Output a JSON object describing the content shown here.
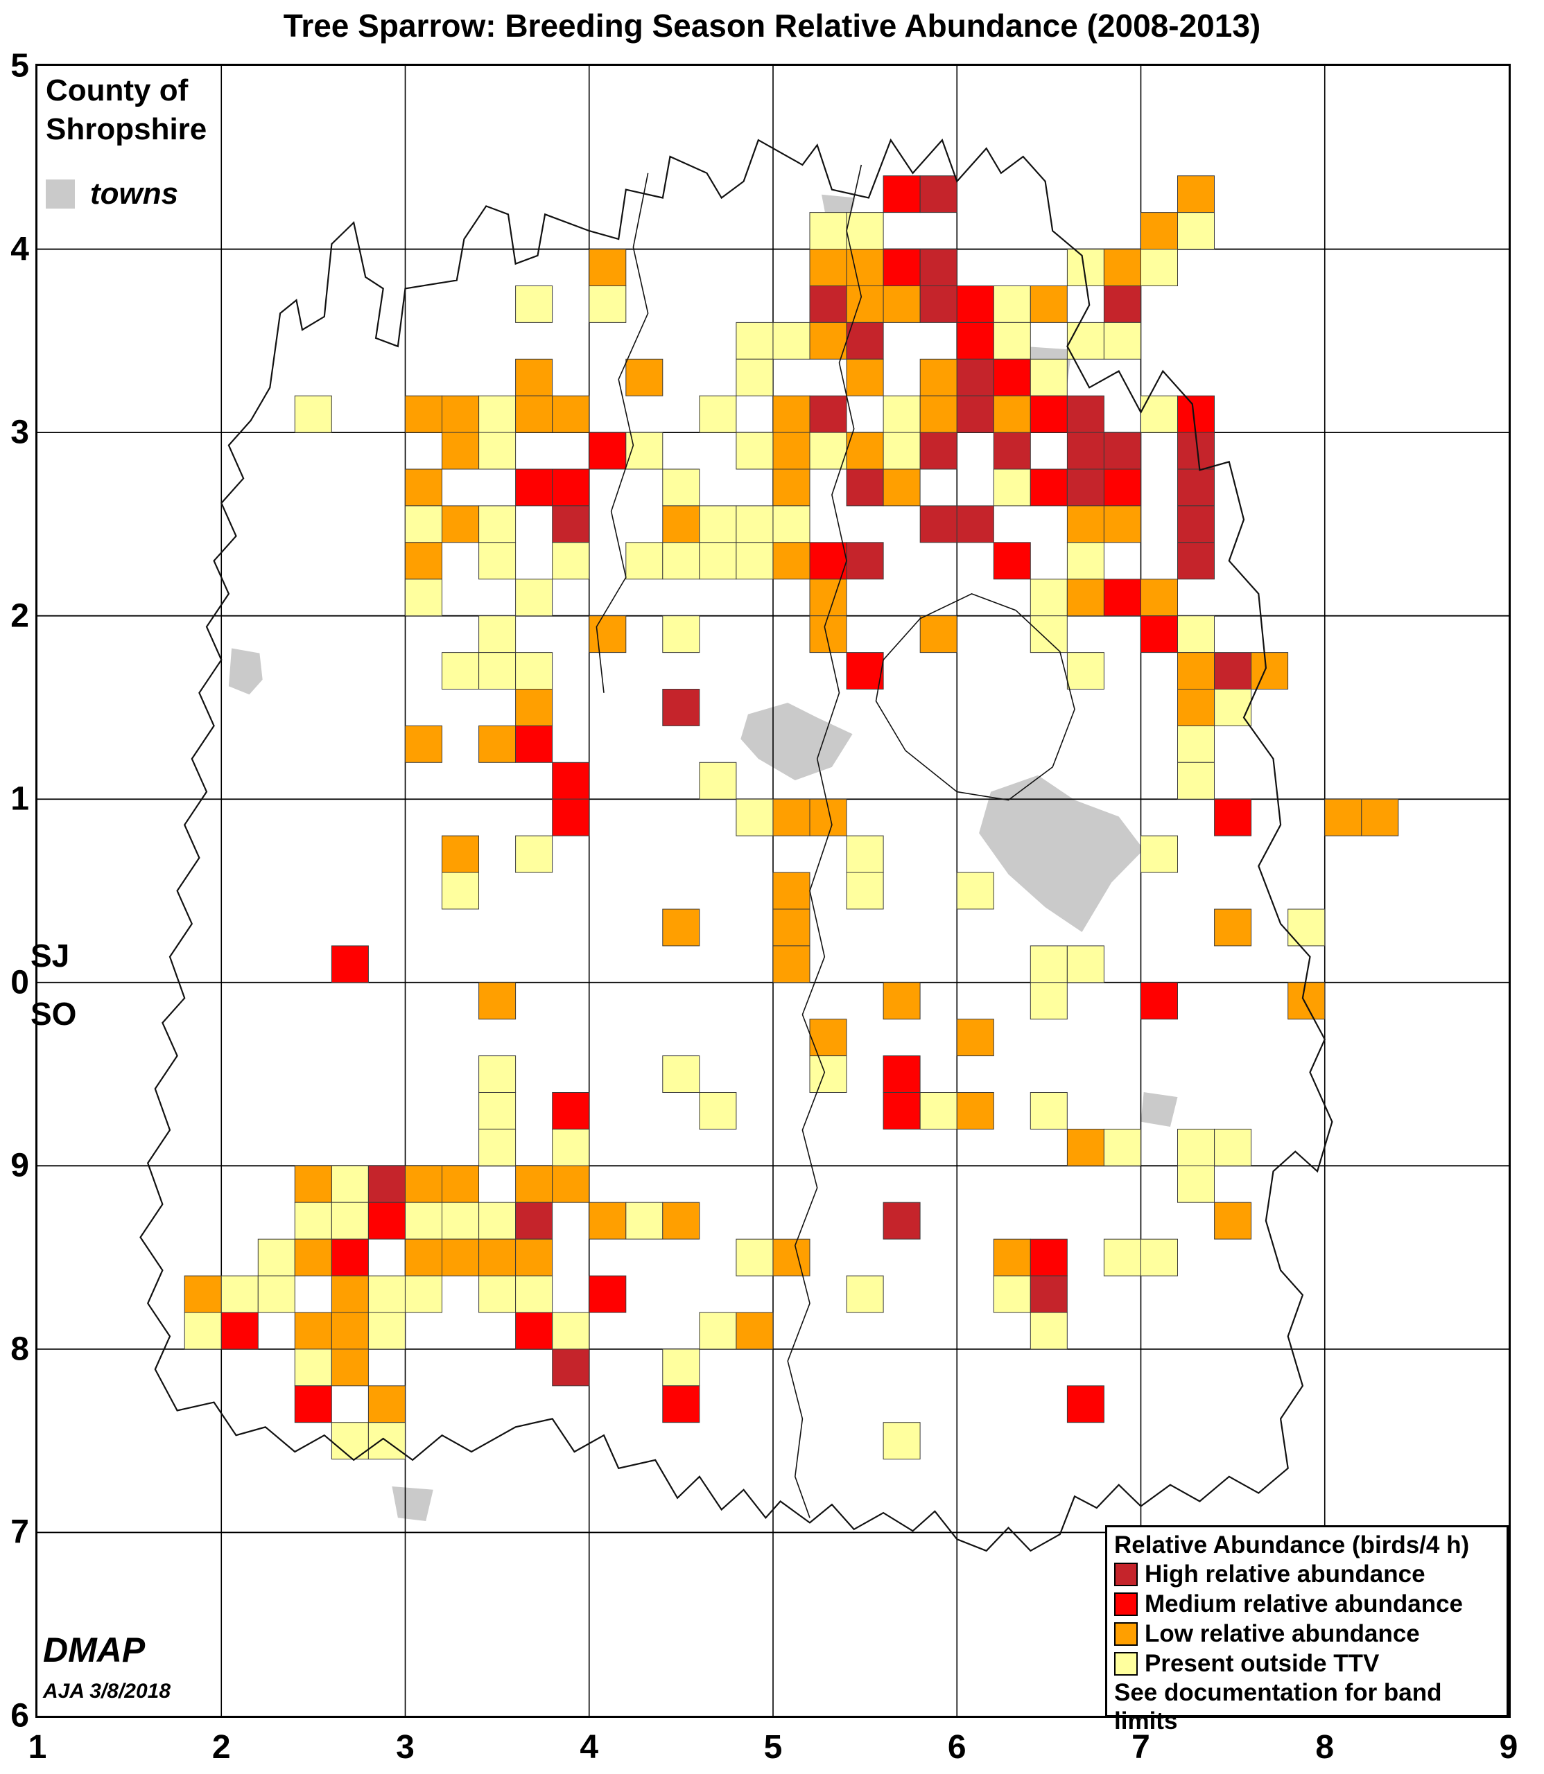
{
  "title": "Tree Sparrow: Breeding Season Relative Abundance (2008-2013)",
  "county_legend": {
    "line1": "County of",
    "line2": "Shropshire",
    "towns_label": "towns"
  },
  "watermark": {
    "name": "DMAP",
    "credit": "AJA 3/8/2018"
  },
  "legend": {
    "title": "Relative Abundance (birds/4 h)",
    "items": [
      {
        "code": "H",
        "label": "High relative abundance",
        "color": "#C5242B"
      },
      {
        "code": "M",
        "label": "Medium relative abundance",
        "color": "#FF0000"
      },
      {
        "code": "L",
        "label": "Low relative abundance",
        "color": "#FF9F00"
      },
      {
        "code": "P",
        "label": "Present outside TTV",
        "color": "#FFFF9E"
      }
    ],
    "note": "See documentation for band limits"
  },
  "axes": {
    "x_labels": [
      "1",
      "2",
      "3",
      "4",
      "5",
      "6",
      "7",
      "8",
      "9"
    ],
    "y_labels": [
      "5",
      "4",
      "3",
      "2",
      "1",
      "0",
      "9",
      "8",
      "7",
      "6"
    ],
    "grid_letters": {
      "upper": "SJ",
      "lower": "SO"
    }
  },
  "colors": {
    "high": "#C5242B",
    "medium": "#FF0000",
    "low": "#FF9F00",
    "present": "#FFFF9E",
    "town": "#CACACA",
    "grid_line": "#000000",
    "cell_border": "#3a3a3a",
    "outline": "#111111"
  },
  "chart_data": {
    "type": "heatmap",
    "title": "Tree Sparrow: Breeding Season Relative Abundance (2008-2013)",
    "grid_cols": 40,
    "grid_rows_count": 45,
    "x_range_labels": [
      "1",
      "9"
    ],
    "y_range_labels": [
      "5",
      "6"
    ],
    "legend_codes": {
      "H": "High relative abundance",
      "M": "Medium relative abundance",
      "L": "Low relative abundance",
      "P": "Present outside TTV",
      ".": "absent"
    },
    "grid_rows": [
      "........................................",
      "........................................",
      "........................................",
      ".......................MH......L........",
      ".....................PP.......LP........",
      "...............L.....LLMH...PLP.........",
      ".............P.P.....HLLHMPL.H..........",
      "...................PPLH..MP.PP..........",
      ".............L..L..P..L.LHMP............",
      ".......P..LLPLL...P.LH.PLHLMH.PM........",
      "...........LP..MP..PLPLPH.H.HH.H........",
      "..........L..MM..P..L.HL..PMHM.H........",
      "..........PLP.H..LPPP...HH..LL.H........",
      "..........L.P.P.PPPPLMH...M.P..H........",
      "..........P..P.......L.....PLML.........",
      "............P..L.P...L..L..P..MP........",
      "...........PPP........M.....P..LHL......",
      ".............L...H.............LP.......",
      "..........L.LM.................P........",
      "..............M...P............P........",
      "..............M....PLL..........M..LL...",
      "...........L.P........P.......P.........",
      "...........P........L.P..P..............",
      ".................L..L...........L.P.....",
      "........M...........L......PP...........",
      "............L..........L...P..M...L.....",
      ".....................L...L..............",
      "............P....P...P.M................",
      "............P.M...P....MPL.P............",
      "............P.P.............LP.PP.......",
      ".......LPHLL.LL................P........",
      ".......PPMPPPH.LPL.....H........L.......",
      "......PLM.LLLL.....PL.....LM.PP.........",
      "....LPP.LPP.PP.M......P...PH............",
      "....PM.LLP...MP...PL.......P............",
      ".......PL.....H..P......................",
      ".......M.L.......M..........M...........",
      "........PP.............P................",
      "........................................",
      "........................................",
      "........................................",
      "........................................",
      "........................................",
      "........................................",
      "........................................"
    ]
  },
  "map": {
    "outline_pct": [
      [
        15.8,
        19.5
      ],
      [
        16.5,
        15.0
      ],
      [
        17.6,
        14.2
      ],
      [
        18.0,
        16.0
      ],
      [
        19.5,
        15.2
      ],
      [
        20.0,
        10.8
      ],
      [
        21.5,
        9.5
      ],
      [
        22.3,
        12.8
      ],
      [
        23.5,
        13.5
      ],
      [
        23.0,
        16.5
      ],
      [
        24.5,
        17.0
      ],
      [
        25.0,
        13.5
      ],
      [
        28.5,
        13.0
      ],
      [
        29.0,
        10.5
      ],
      [
        30.5,
        8.5
      ],
      [
        32.0,
        9.0
      ],
      [
        32.5,
        12.0
      ],
      [
        34.0,
        11.5
      ],
      [
        34.5,
        9.0
      ],
      [
        37.5,
        10.0
      ],
      [
        39.5,
        10.5
      ],
      [
        40.0,
        7.5
      ],
      [
        42.5,
        8.0
      ],
      [
        43.0,
        5.5
      ],
      [
        45.5,
        6.5
      ],
      [
        46.5,
        8.0
      ],
      [
        48.0,
        7.0
      ],
      [
        49.0,
        4.5
      ],
      [
        52.0,
        6.0
      ],
      [
        53.0,
        4.8
      ],
      [
        54.0,
        7.5
      ],
      [
        56.5,
        8.0
      ],
      [
        58.0,
        4.5
      ],
      [
        59.5,
        6.5
      ],
      [
        61.5,
        4.5
      ],
      [
        62.5,
        7.0
      ],
      [
        64.5,
        5.0
      ],
      [
        65.5,
        6.5
      ],
      [
        67.0,
        5.5
      ],
      [
        68.5,
        7.0
      ],
      [
        69.0,
        10.0
      ],
      [
        71.0,
        11.5
      ],
      [
        71.5,
        14.5
      ],
      [
        70.0,
        17.0
      ],
      [
        71.5,
        19.5
      ],
      [
        73.5,
        18.5
      ],
      [
        75.0,
        21.0
      ],
      [
        76.5,
        18.5
      ],
      [
        78.5,
        20.5
      ],
      [
        79.0,
        24.5
      ],
      [
        81.0,
        24.0
      ],
      [
        82.0,
        27.5
      ],
      [
        81.0,
        30.0
      ],
      [
        83.0,
        32.0
      ],
      [
        83.5,
        36.5
      ],
      [
        82.0,
        39.5
      ],
      [
        84.0,
        42.0
      ],
      [
        84.5,
        46.0
      ],
      [
        83.0,
        48.5
      ],
      [
        84.5,
        52.0
      ],
      [
        86.5,
        54.0
      ],
      [
        86.0,
        56.5
      ],
      [
        87.5,
        59.0
      ],
      [
        86.5,
        61.0
      ],
      [
        88.0,
        64.0
      ],
      [
        87.0,
        67.0
      ],
      [
        85.5,
        65.8
      ],
      [
        84.0,
        67.0
      ],
      [
        83.5,
        70.0
      ],
      [
        84.5,
        73.0
      ],
      [
        86.0,
        74.5
      ],
      [
        85.0,
        77.0
      ],
      [
        86.0,
        80.0
      ],
      [
        84.5,
        82.0
      ],
      [
        85.0,
        85.0
      ],
      [
        83.0,
        86.5
      ],
      [
        81.0,
        85.5
      ],
      [
        79.0,
        87.0
      ],
      [
        77.0,
        86.0
      ],
      [
        75.0,
        87.3
      ],
      [
        73.5,
        86.0
      ],
      [
        72.0,
        87.4
      ],
      [
        70.5,
        86.7
      ],
      [
        69.5,
        89.0
      ],
      [
        67.5,
        90.0
      ],
      [
        66.0,
        88.6
      ],
      [
        64.5,
        90.0
      ],
      [
        62.5,
        89.3
      ],
      [
        61.0,
        87.6
      ],
      [
        59.5,
        88.8
      ],
      [
        57.5,
        87.7
      ],
      [
        55.5,
        88.7
      ],
      [
        54.0,
        87.2
      ],
      [
        52.5,
        88.3
      ],
      [
        50.5,
        87.0
      ],
      [
        49.5,
        88.0
      ],
      [
        48.0,
        86.3
      ],
      [
        46.5,
        87.5
      ],
      [
        45.0,
        85.5
      ],
      [
        43.5,
        86.8
      ],
      [
        42.0,
        84.5
      ],
      [
        39.5,
        85.0
      ],
      [
        38.5,
        83.0
      ],
      [
        36.5,
        84.0
      ],
      [
        35.0,
        82.0
      ],
      [
        32.5,
        82.5
      ],
      [
        29.5,
        84.0
      ],
      [
        27.5,
        83.0
      ],
      [
        25.5,
        84.5
      ],
      [
        23.5,
        83.2
      ],
      [
        21.5,
        84.5
      ],
      [
        19.5,
        83.0
      ],
      [
        17.5,
        84.0
      ],
      [
        15.5,
        82.5
      ],
      [
        13.5,
        83.0
      ],
      [
        12.0,
        81.0
      ],
      [
        9.5,
        81.5
      ],
      [
        8.0,
        79.0
      ],
      [
        9.0,
        77.0
      ],
      [
        7.5,
        75.0
      ],
      [
        8.5,
        73.0
      ],
      [
        7.0,
        71.0
      ],
      [
        8.5,
        69.0
      ],
      [
        7.5,
        66.5
      ],
      [
        9.0,
        64.5
      ],
      [
        8.0,
        62.0
      ],
      [
        9.5,
        60.0
      ],
      [
        8.5,
        58.0
      ],
      [
        10.0,
        56.5
      ],
      [
        9.0,
        54.0
      ],
      [
        10.5,
        52.0
      ],
      [
        9.5,
        50.0
      ],
      [
        11.0,
        48.0
      ],
      [
        10.0,
        46.0
      ],
      [
        11.5,
        44.0
      ],
      [
        10.5,
        42.0
      ],
      [
        12.0,
        40.0
      ],
      [
        11.0,
        38.0
      ],
      [
        12.5,
        36.0
      ],
      [
        11.5,
        34.0
      ],
      [
        13.0,
        32.0
      ],
      [
        12.0,
        30.0
      ],
      [
        13.5,
        28.5
      ],
      [
        12.5,
        26.5
      ],
      [
        14.0,
        25.0
      ],
      [
        13.0,
        23.0
      ],
      [
        14.5,
        21.5
      ]
    ],
    "district_lines_pct": [
      [
        [
          57.5,
          36.0
        ],
        [
          60.0,
          33.5
        ],
        [
          63.5,
          32.0
        ],
        [
          66.5,
          33.0
        ],
        [
          69.5,
          35.5
        ],
        [
          70.5,
          39.0
        ],
        [
          69.0,
          42.5
        ],
        [
          66.0,
          44.5
        ],
        [
          62.5,
          44.0
        ],
        [
          59.0,
          41.5
        ],
        [
          57.0,
          38.5
        ],
        [
          57.5,
          36.0
        ]
      ],
      [
        [
          52.0,
          57.5
        ],
        [
          53.5,
          61.0
        ],
        [
          52.0,
          64.5
        ],
        [
          53.0,
          68.0
        ],
        [
          51.5,
          71.5
        ],
        [
          52.5,
          75.0
        ],
        [
          51.0,
          78.5
        ],
        [
          52.0,
          82.0
        ],
        [
          51.5,
          85.5
        ],
        [
          52.5,
          88.0
        ]
      ],
      [
        [
          41.5,
          6.5
        ],
        [
          40.5,
          11.0
        ],
        [
          41.5,
          15.0
        ],
        [
          39.5,
          19.0
        ],
        [
          40.5,
          23.0
        ],
        [
          39.0,
          27.0
        ],
        [
          40.0,
          31.0
        ],
        [
          38.0,
          34.0
        ],
        [
          38.5,
          38.0
        ]
      ],
      [
        [
          56.0,
          6.0
        ],
        [
          55.0,
          10.0
        ],
        [
          56.0,
          14.0
        ],
        [
          54.5,
          18.0
        ],
        [
          55.5,
          22.0
        ],
        [
          54.0,
          26.0
        ],
        [
          55.0,
          30.0
        ],
        [
          53.5,
          34.0
        ],
        [
          54.5,
          38.0
        ],
        [
          53.0,
          42.0
        ],
        [
          54.0,
          46.0
        ],
        [
          52.5,
          50.0
        ],
        [
          53.5,
          54.0
        ],
        [
          52.0,
          57.5
        ]
      ]
    ],
    "towns_pct": [
      {
        "name": "town-blob",
        "points": [
          [
            13.2,
            35.3
          ],
          [
            15.1,
            35.6
          ],
          [
            15.3,
            37.2
          ],
          [
            14.4,
            38.1
          ],
          [
            13.0,
            37.6
          ]
        ]
      },
      {
        "name": "town-blob",
        "points": [
          [
            53.3,
            7.8
          ],
          [
            55.6,
            8.0
          ],
          [
            55.2,
            9.4
          ],
          [
            53.6,
            9.2
          ]
        ]
      },
      {
        "name": "town-blob",
        "points": [
          [
            67.0,
            17.0
          ],
          [
            70.3,
            17.2
          ],
          [
            70.0,
            19.3
          ],
          [
            67.3,
            19.5
          ]
        ]
      },
      {
        "name": "town-blob",
        "points": [
          [
            48.3,
            39.3
          ],
          [
            51.0,
            38.6
          ],
          [
            53.0,
            39.5
          ],
          [
            55.4,
            40.5
          ],
          [
            54.0,
            42.5
          ],
          [
            51.5,
            43.3
          ],
          [
            49.0,
            42.0
          ],
          [
            47.8,
            40.8
          ]
        ]
      },
      {
        "name": "town-blob",
        "points": [
          [
            64.8,
            44.0
          ],
          [
            68.0,
            43.0
          ],
          [
            70.5,
            44.5
          ],
          [
            73.5,
            45.5
          ],
          [
            75.2,
            47.5
          ],
          [
            73.0,
            49.5
          ],
          [
            71.0,
            52.5
          ],
          [
            68.5,
            51.0
          ],
          [
            66.0,
            49.0
          ],
          [
            64.0,
            46.5
          ]
        ]
      },
      {
        "name": "town-blob",
        "points": [
          [
            75.2,
            62.2
          ],
          [
            77.5,
            62.5
          ],
          [
            77.0,
            64.3
          ],
          [
            75.0,
            64.0
          ]
        ]
      },
      {
        "name": "town-blob",
        "points": [
          [
            24.1,
            86.1
          ],
          [
            26.9,
            86.3
          ],
          [
            26.4,
            88.2
          ],
          [
            24.5,
            88.0
          ]
        ]
      }
    ]
  }
}
